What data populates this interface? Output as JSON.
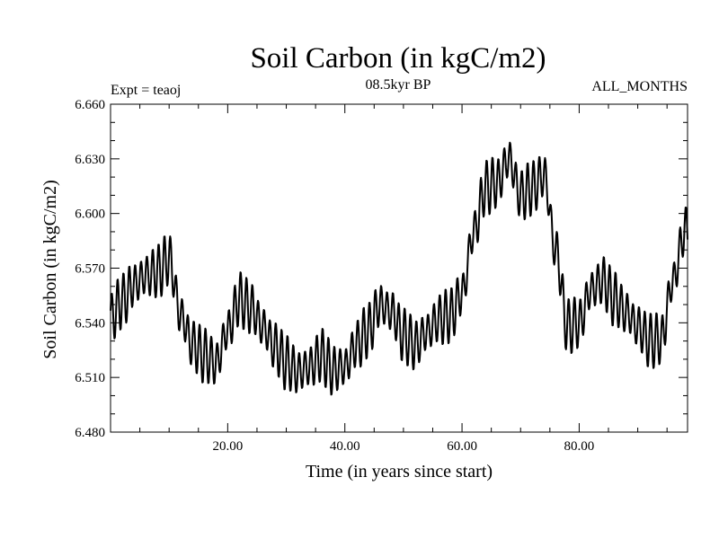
{
  "chart_data": {
    "type": "line",
    "title": "Soil Carbon (in kgC/m2)",
    "subtitle": "08.5kyr BP",
    "left_label": "Expt = teaoj",
    "right_label": "ALL_MONTHS",
    "xlabel": "Time (in years since start)",
    "ylabel": "Soil Carbon (in kgC/m2)",
    "xlim": [
      0,
      98.5
    ],
    "ylim": [
      6.48,
      6.66
    ],
    "x_ticks": [
      20,
      40,
      60,
      80
    ],
    "x_tick_labels": [
      "20.00",
      "40.00",
      "60.00",
      "80.00"
    ],
    "y_ticks": [
      6.48,
      6.51,
      6.54,
      6.57,
      6.6,
      6.63,
      6.66
    ],
    "y_tick_labels": [
      "6.480",
      "6.510",
      "6.540",
      "6.570",
      "6.600",
      "6.630",
      "6.660"
    ],
    "grid": false,
    "series": [
      {
        "name": "Soil Carbon",
        "color": "#000000",
        "x": [
          0,
          2,
          4,
          6,
          8,
          10,
          12,
          14,
          16,
          18,
          20,
          22,
          24,
          26,
          28,
          30,
          32,
          34,
          36,
          38,
          40,
          42,
          44,
          46,
          48,
          50,
          52,
          54,
          56,
          58,
          60,
          62,
          64,
          66,
          68,
          70,
          72,
          74,
          76,
          78,
          80,
          82,
          84,
          86,
          88,
          90,
          92,
          94,
          96,
          98
        ],
        "y": [
          6.543,
          6.552,
          6.561,
          6.566,
          6.568,
          6.575,
          6.544,
          6.528,
          6.522,
          6.518,
          6.536,
          6.553,
          6.548,
          6.538,
          6.527,
          6.518,
          6.513,
          6.516,
          6.522,
          6.514,
          6.516,
          6.528,
          6.536,
          6.55,
          6.546,
          6.533,
          6.528,
          6.535,
          6.542,
          6.544,
          6.556,
          6.59,
          6.614,
          6.617,
          6.63,
          6.61,
          6.614,
          6.621,
          6.58,
          6.538,
          6.54,
          6.558,
          6.563,
          6.553,
          6.546,
          6.538,
          6.53,
          6.531,
          6.563,
          6.59
        ]
      }
    ]
  }
}
